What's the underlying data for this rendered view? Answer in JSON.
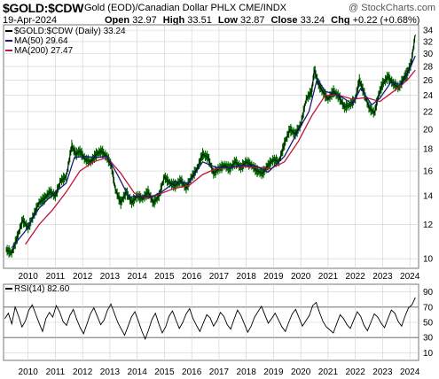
{
  "header": {
    "symbol": "$GOLD:$CDW",
    "description": "Gold (EOD)/Canadian Dollar PHLX  CME/INDX",
    "watermark": "@ StockCharts.com",
    "date": "19-Apr-2024",
    "open_label": "Open",
    "open": "32.97",
    "high_label": "High",
    "high": "33.51",
    "low_label": "Low",
    "low": "32.87",
    "close_label": "Close",
    "close": "33.24",
    "chg_label": "Chg",
    "chg": "+0.22 (+0.68%)"
  },
  "colors": {
    "price": "#006400",
    "price_dark": "#000000",
    "ma50": "#1a1a7a",
    "ma200": "#c0143c",
    "grid": "#cfcfcf",
    "rsi": "#000000"
  },
  "chart_data": [
    {
      "type": "line",
      "title": "$GOLD:$CDW (Daily) 33.24",
      "scale": "log",
      "ylim": [
        9.5,
        35
      ],
      "y_ticks": [
        "10",
        "12",
        "14",
        "16",
        "18",
        "20",
        "22",
        "24",
        "26",
        "28",
        "30",
        "32",
        "34"
      ],
      "x_ticks": [
        "2010",
        "2011",
        "2012",
        "2013",
        "2014",
        "2015",
        "2016",
        "2017",
        "2018",
        "2019",
        "2020",
        "2021",
        "2022",
        "2023",
        "2024"
      ],
      "legend": [
        {
          "name": "$GOLD:$CDW (Daily) 33.24",
          "color": "#000000"
        },
        {
          "name": "MA(50) 29.64",
          "color": "#1a1a7a"
        },
        {
          "name": "MA(200) 27.47",
          "color": "#c0143c"
        }
      ],
      "series": [
        {
          "name": "$GOLD:$CDW (Daily) 33.24",
          "x": [
            2009.3,
            2009.5,
            2009.7,
            2009.9,
            2010.1,
            2010.3,
            2010.5,
            2010.7,
            2010.9,
            2011.1,
            2011.3,
            2011.5,
            2011.7,
            2011.85,
            2012.0,
            2012.2,
            2012.4,
            2012.6,
            2012.8,
            2013.0,
            2013.15,
            2013.3,
            2013.5,
            2013.7,
            2013.9,
            2014.1,
            2014.3,
            2014.5,
            2014.7,
            2014.9,
            2015.1,
            2015.3,
            2015.5,
            2015.7,
            2015.9,
            2016.1,
            2016.3,
            2016.5,
            2016.7,
            2016.9,
            2017.1,
            2017.3,
            2017.5,
            2017.7,
            2017.9,
            2018.1,
            2018.3,
            2018.5,
            2018.7,
            2018.9,
            2019.1,
            2019.3,
            2019.5,
            2019.7,
            2019.9,
            2020.1,
            2020.3,
            2020.5,
            2020.6,
            2020.75,
            2020.9,
            2021.1,
            2021.3,
            2021.5,
            2021.7,
            2021.9,
            2022.1,
            2022.25,
            2022.4,
            2022.6,
            2022.8,
            2022.95,
            2023.1,
            2023.3,
            2023.5,
            2023.7,
            2023.9,
            2024.0,
            2024.15,
            2024.3
          ],
          "y": [
            10.5,
            10.3,
            11.2,
            12.3,
            11.8,
            12.6,
            13.5,
            13.8,
            14.3,
            14.0,
            15.2,
            15.5,
            18.3,
            17.5,
            17.8,
            17.0,
            16.8,
            17.5,
            17.8,
            17.2,
            16.5,
            14.5,
            13.5,
            14.3,
            13.5,
            14.0,
            13.8,
            14.3,
            13.5,
            14.0,
            15.5,
            15.0,
            14.8,
            15.2,
            14.6,
            15.5,
            16.2,
            17.5,
            17.2,
            15.8,
            16.2,
            16.5,
            16.2,
            16.8,
            16.3,
            16.8,
            16.5,
            16.0,
            15.8,
            16.5,
            17.0,
            16.8,
            18.5,
            20.0,
            19.5,
            20.5,
            23.5,
            24.5,
            27.5,
            25.5,
            24.5,
            23.5,
            24.5,
            23.8,
            22.5,
            22.8,
            23.5,
            26.0,
            24.5,
            22.5,
            21.8,
            24.0,
            25.5,
            26.5,
            25.5,
            25.0,
            26.5,
            27.0,
            28.5,
            33.24
          ]
        },
        {
          "name": "MA(50) 29.64",
          "x": [
            2009.5,
            2010.0,
            2010.5,
            2011.0,
            2011.5,
            2011.8,
            2012.2,
            2012.6,
            2013.0,
            2013.4,
            2013.8,
            2014.2,
            2014.6,
            2015.0,
            2015.5,
            2016.0,
            2016.5,
            2017.0,
            2017.5,
            2018.0,
            2018.5,
            2018.9,
            2019.5,
            2020.0,
            2020.4,
            2020.7,
            2021.0,
            2021.5,
            2022.0,
            2022.3,
            2022.7,
            2023.0,
            2023.4,
            2023.8,
            2024.0,
            2024.3
          ],
          "y": [
            10.6,
            11.6,
            13.1,
            14.1,
            15.0,
            17.2,
            17.3,
            17.2,
            17.3,
            15.6,
            13.9,
            14.0,
            13.9,
            14.3,
            15.1,
            15.0,
            16.8,
            16.3,
            16.3,
            16.5,
            16.4,
            15.9,
            17.3,
            19.8,
            22.0,
            26.2,
            24.5,
            24.0,
            22.9,
            24.9,
            22.8,
            23.6,
            25.7,
            25.4,
            26.8,
            29.64
          ]
        },
        {
          "name": "MA(200) 27.47",
          "x": [
            2010.0,
            2010.5,
            2011.0,
            2011.5,
            2012.0,
            2012.5,
            2013.0,
            2013.5,
            2014.0,
            2014.5,
            2015.0,
            2015.5,
            2016.0,
            2016.5,
            2017.0,
            2017.5,
            2018.0,
            2018.5,
            2019.0,
            2019.5,
            2020.0,
            2020.5,
            2021.0,
            2021.5,
            2022.0,
            2022.5,
            2023.0,
            2023.5,
            2024.0,
            2024.3
          ],
          "y": [
            10.8,
            12.0,
            13.0,
            14.3,
            16.0,
            16.8,
            17.2,
            15.8,
            14.2,
            13.8,
            14.2,
            14.6,
            14.8,
            15.7,
            16.2,
            16.3,
            16.4,
            16.3,
            16.2,
            16.8,
            18.7,
            21.5,
            24.0,
            24.0,
            23.5,
            23.7,
            23.2,
            24.5,
            26.0,
            27.47
          ]
        }
      ]
    },
    {
      "type": "line",
      "title": "RSI(14) 82.60",
      "ylim": [
        0,
        100
      ],
      "y_ticks": [
        "10",
        "30",
        "50",
        "70",
        "90"
      ],
      "reference_lines": [
        30,
        70
      ],
      "x_ticks": [
        "2010",
        "2011",
        "2012",
        "2013",
        "2014",
        "2015",
        "2016",
        "2017",
        "2018",
        "2019",
        "2020",
        "2021",
        "2022",
        "2023",
        "2024"
      ],
      "series": [
        {
          "name": "RSI(14) 82.60",
          "x_start": 2009.25,
          "x_end": 2024.3,
          "values": [
            55,
            62,
            48,
            70,
            58,
            44,
            52,
            66,
            73,
            61,
            49,
            38,
            55,
            63,
            57,
            72,
            64,
            51,
            46,
            59,
            67,
            54,
            43,
            35,
            48,
            61,
            69,
            58,
            47,
            53,
            66,
            74,
            62,
            50,
            41,
            33,
            45,
            57,
            64,
            52,
            39,
            28,
            40,
            54,
            62,
            48,
            36,
            44,
            58,
            65,
            53,
            42,
            50,
            61,
            68,
            55,
            46,
            38,
            49,
            60,
            56,
            45,
            52,
            63,
            58,
            47,
            41,
            54,
            66,
            59,
            48,
            37,
            45,
            57,
            64,
            71,
            60,
            49,
            55,
            62,
            53,
            44,
            38,
            50,
            61,
            67,
            56,
            45,
            52,
            59,
            72,
            76,
            63,
            51,
            44,
            40,
            36,
            48,
            60,
            55,
            47,
            42,
            53,
            64,
            58,
            46,
            39,
            50,
            61,
            57,
            49,
            43,
            55,
            66,
            62,
            51,
            45,
            58,
            69,
            73,
            82.6
          ]
        }
      ]
    }
  ]
}
